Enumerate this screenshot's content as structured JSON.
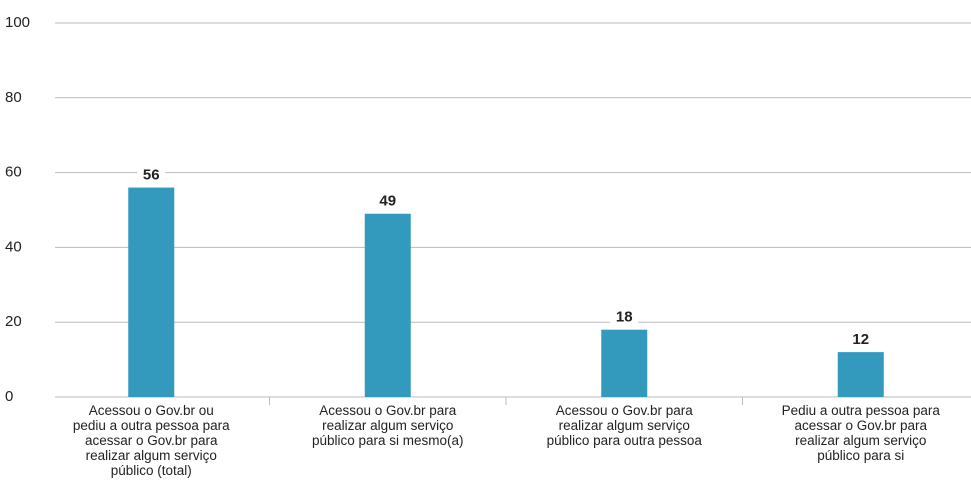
{
  "chart_data": {
    "type": "bar",
    "categories": [
      "Acessou o Gov.br ou pediu a outra pessoa para acessar o Gov.br para realizar algum serviço público (total)",
      "Acessou o Gov.br para realizar algum serviço público para si mesmo(a)",
      "Acessou o Gov.br para realizar algum serviço público para outra pessoa",
      "Pediu a outra pessoa para acessar o Gov.br para realizar algum serviço público para si"
    ],
    "values": [
      56,
      49,
      18,
      12
    ],
    "color": "#3399bd",
    "ylim": [
      0,
      100
    ],
    "yticks": [
      0,
      20,
      40,
      60,
      80,
      100
    ],
    "grid": true
  }
}
